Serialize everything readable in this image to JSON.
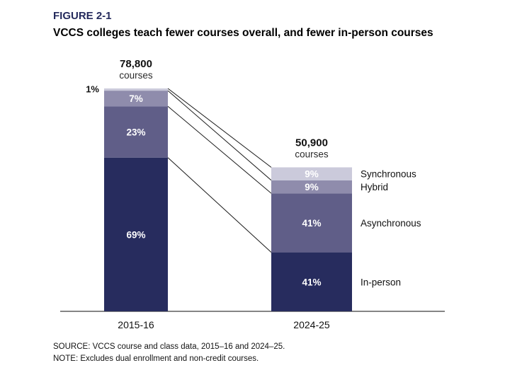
{
  "figure": {
    "label": "FIGURE 2-1",
    "title": "VCCS colleges teach fewer courses overall, and fewer in-person courses"
  },
  "chart_data": {
    "type": "bar",
    "variant": "stacked-percent-columns-with-heights-proportional-to-totals",
    "categories": [
      "2015-16",
      "2024-25"
    ],
    "totals": [
      {
        "value": 78800,
        "label": "78,800",
        "sublabel": "courses"
      },
      {
        "value": 50900,
        "label": "50,900",
        "sublabel": "courses"
      }
    ],
    "series": [
      {
        "name": "In-person",
        "values": [
          69,
          41
        ],
        "color": "#272c5e"
      },
      {
        "name": "Asynchronous",
        "values": [
          23,
          41
        ],
        "color": "#605e88"
      },
      {
        "name": "Hybrid",
        "values": [
          7,
          9
        ],
        "color": "#8f8cac"
      },
      {
        "name": "Synchronous",
        "values": [
          1,
          9
        ],
        "color": "#cbcadb"
      }
    ],
    "stack_order": "bottom-to-top",
    "value_suffix": "%",
    "ylim": [
      0,
      100
    ],
    "grid": false,
    "legend_position": "right-of-second-bar",
    "connector_lines": "segment boundaries linked between bars"
  },
  "footer": {
    "source": "SOURCE: VCCS course and class data, 2015–16 and 2024–25.",
    "note": "NOTE: Excludes dual enrollment and non-credit courses."
  }
}
